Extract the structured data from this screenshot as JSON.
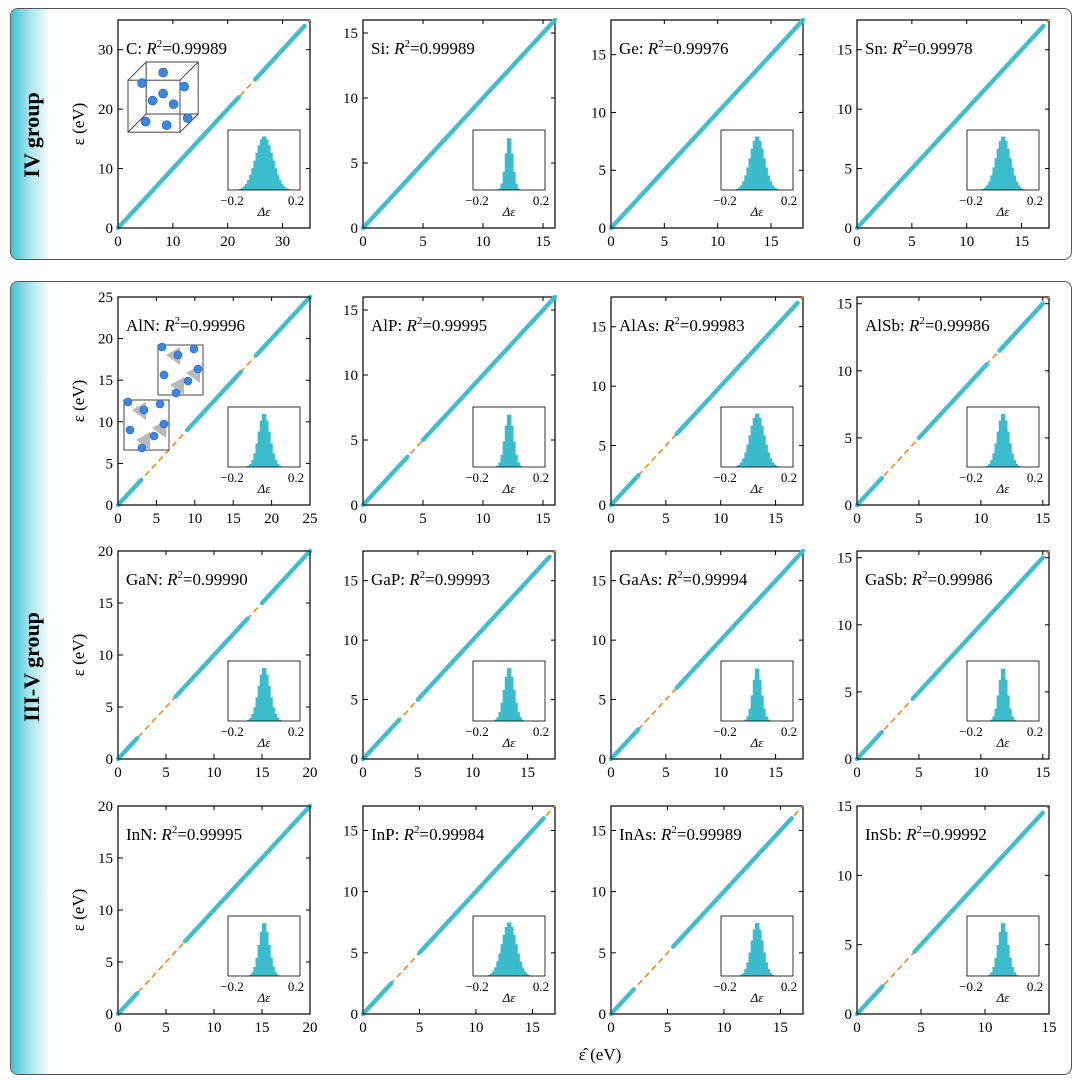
{
  "groups": {
    "iv": "IV group",
    "iii_v": "III-V group"
  },
  "axis_labels": {
    "y": "ε (eV)",
    "x": "ε̂ (eV)"
  },
  "colors": {
    "points": "#3bbccc",
    "fit_line": "#f08a24",
    "histogram": "#3bbccc"
  },
  "chart_data": [
    {
      "type": "scatter",
      "material": "C",
      "r2_label": "R",
      "r2_value": "=0.99989",
      "sep": ":",
      "xlim": [
        0,
        35
      ],
      "ylim": [
        0,
        35
      ],
      "xticks": [
        0,
        10,
        20,
        30
      ],
      "yticks": [
        0,
        10,
        20,
        30
      ],
      "segments": [
        [
          0,
          22
        ],
        [
          25,
          34
        ]
      ],
      "inset": {
        "type": "histogram",
        "xticks": [
          "-0.2",
          "0.2"
        ],
        "xlabel": "Δε",
        "spread": 0.06
      }
    },
    {
      "type": "scatter",
      "material": "Si",
      "r2_label": "R",
      "r2_value": "=0.99989",
      "sep": ":",
      "xlim": [
        0,
        16
      ],
      "ylim": [
        0,
        16
      ],
      "xticks": [
        0,
        5,
        10,
        15
      ],
      "yticks": [
        0,
        5,
        10,
        15
      ],
      "segments": [
        [
          0,
          16
        ]
      ],
      "inset": {
        "type": "histogram",
        "xticks": [
          "-0.2",
          "0.2"
        ],
        "xlabel": "Δε",
        "spread": 0.025
      }
    },
    {
      "type": "scatter",
      "material": "Ge",
      "r2_label": "R",
      "r2_value": "=0.99976",
      "sep": ":",
      "xlim": [
        0,
        18
      ],
      "ylim": [
        0,
        18
      ],
      "xticks": [
        0,
        5,
        10,
        15
      ],
      "yticks": [
        0,
        5,
        10,
        15
      ],
      "segments": [
        [
          0,
          18
        ]
      ],
      "inset": {
        "type": "histogram",
        "xticks": [
          "-0.2",
          "0.2"
        ],
        "xlabel": "Δε",
        "spread": 0.05
      }
    },
    {
      "type": "scatter",
      "material": "Sn",
      "r2_label": "R",
      "r2_value": "=0.99978",
      "sep": ":",
      "xlim": [
        0,
        17.5
      ],
      "ylim": [
        0,
        17.5
      ],
      "xticks": [
        0,
        5,
        10,
        15
      ],
      "yticks": [
        0,
        5,
        10,
        15
      ],
      "segments": [
        [
          0,
          17
        ]
      ],
      "inset": {
        "type": "histogram",
        "xticks": [
          "-0.2",
          "0.2"
        ],
        "xlabel": "Δε",
        "spread": 0.05
      }
    },
    {
      "type": "scatter",
      "material": "AlN",
      "r2_label": "R",
      "r2_value": "=0.99996",
      "sep": ":",
      "xlim": [
        0,
        25
      ],
      "ylim": [
        0,
        25
      ],
      "xticks": [
        0,
        5,
        10,
        15,
        20,
        25
      ],
      "yticks": [
        0,
        5,
        10,
        15,
        20,
        25
      ],
      "segments": [
        [
          0,
          3
        ],
        [
          9,
          16
        ],
        [
          18,
          25
        ]
      ],
      "inset": {
        "type": "histogram",
        "xticks": [
          "-0.2",
          "0.2"
        ],
        "xlabel": "Δε",
        "spread": 0.04
      }
    },
    {
      "type": "scatter",
      "material": "AlP",
      "r2_label": "R",
      "r2_value": "=0.99995",
      "sep": ":",
      "xlim": [
        0,
        16
      ],
      "ylim": [
        0,
        16
      ],
      "xticks": [
        0,
        5,
        10,
        15
      ],
      "yticks": [
        0,
        5,
        10,
        15
      ],
      "segments": [
        [
          0,
          3.7
        ],
        [
          5,
          16
        ]
      ],
      "inset": {
        "type": "histogram",
        "xticks": [
          "-0.2",
          "0.2"
        ],
        "xlabel": "Δε",
        "spread": 0.03
      }
    },
    {
      "type": "scatter",
      "material": "AlAs",
      "r2_label": "R",
      "r2_value": "=0.99983",
      "sep": ":",
      "xlim": [
        0,
        17.5
      ],
      "ylim": [
        0,
        17.5
      ],
      "xticks": [
        0,
        5,
        10,
        15
      ],
      "yticks": [
        0,
        5,
        10,
        15
      ],
      "segments": [
        [
          0,
          2.5
        ],
        [
          6,
          17
        ]
      ],
      "inset": {
        "type": "histogram",
        "xticks": [
          "-0.2",
          "0.2"
        ],
        "xlabel": "Δε",
        "spread": 0.05
      }
    },
    {
      "type": "scatter",
      "material": "AlSb",
      "r2_label": "R",
      "r2_value": "=0.99986",
      "sep": ":",
      "xlim": [
        0,
        15.5
      ],
      "ylim": [
        0,
        15.5
      ],
      "xticks": [
        0,
        5,
        10,
        15
      ],
      "yticks": [
        0,
        5,
        10,
        15
      ],
      "segments": [
        [
          0,
          2
        ],
        [
          5,
          10.5
        ],
        [
          11.5,
          15
        ]
      ],
      "inset": {
        "type": "histogram",
        "xticks": [
          "-0.2",
          "0.2"
        ],
        "xlabel": "Δε",
        "spread": 0.04
      }
    },
    {
      "type": "scatter",
      "material": "GaN",
      "r2_label": "R",
      "r2_value": "=0.99990",
      "sep": ":",
      "xlim": [
        0,
        20
      ],
      "ylim": [
        0,
        20
      ],
      "xticks": [
        0,
        5,
        10,
        15,
        20
      ],
      "yticks": [
        0,
        5,
        10,
        15,
        20
      ],
      "segments": [
        [
          0,
          2
        ],
        [
          6,
          13.5
        ],
        [
          15,
          20
        ]
      ],
      "inset": {
        "type": "histogram",
        "xticks": [
          "-0.2",
          "0.2"
        ],
        "xlabel": "Δε",
        "spread": 0.04
      }
    },
    {
      "type": "scatter",
      "material": "GaP",
      "r2_label": "R",
      "r2_value": "=0.99993",
      "sep": ":",
      "xlim": [
        0,
        17.5
      ],
      "ylim": [
        0,
        17.5
      ],
      "xticks": [
        0,
        5,
        10,
        15
      ],
      "yticks": [
        0,
        5,
        10,
        15
      ],
      "segments": [
        [
          0,
          3.3
        ],
        [
          5,
          17
        ]
      ],
      "inset": {
        "type": "histogram",
        "xticks": [
          "-0.2",
          "0.2"
        ],
        "xlabel": "Δε",
        "spread": 0.035
      }
    },
    {
      "type": "scatter",
      "material": "GaAs",
      "r2_label": "R",
      "r2_value": "=0.99994",
      "sep": ":",
      "xlim": [
        0,
        17.5
      ],
      "ylim": [
        0,
        17.5
      ],
      "xticks": [
        0,
        5,
        10,
        15
      ],
      "yticks": [
        0,
        5,
        10,
        15
      ],
      "segments": [
        [
          0,
          2.5
        ],
        [
          6,
          17.5
        ]
      ],
      "inset": {
        "type": "histogram",
        "xticks": [
          "-0.2",
          "0.2"
        ],
        "xlabel": "Δε",
        "spread": 0.03
      }
    },
    {
      "type": "scatter",
      "material": "GaSb",
      "r2_label": "R",
      "r2_value": "=0.99986",
      "sep": ":",
      "xlim": [
        0,
        15.5
      ],
      "ylim": [
        0,
        15.5
      ],
      "xticks": [
        0,
        5,
        10,
        15
      ],
      "yticks": [
        0,
        5,
        10,
        15
      ],
      "segments": [
        [
          0,
          2
        ],
        [
          4.5,
          15
        ]
      ],
      "inset": {
        "type": "histogram",
        "xticks": [
          "-0.2",
          "0.2"
        ],
        "xlabel": "Δε",
        "spread": 0.03
      }
    },
    {
      "type": "scatter",
      "material": "InN",
      "r2_label": "R",
      "r2_value": "=0.99995",
      "sep": ":",
      "xlim": [
        0,
        20
      ],
      "ylim": [
        0,
        20
      ],
      "xticks": [
        0,
        5,
        10,
        15,
        20
      ],
      "yticks": [
        0,
        5,
        10,
        15,
        20
      ],
      "segments": [
        [
          0,
          2
        ],
        [
          7,
          20
        ]
      ],
      "inset": {
        "type": "histogram",
        "xticks": [
          "-0.2",
          "0.2"
        ],
        "xlabel": "Δε",
        "spread": 0.035
      }
    },
    {
      "type": "scatter",
      "material": "InP",
      "r2_label": "R",
      "r2_value": "=0.99984",
      "sep": ":",
      "xlim": [
        0,
        17
      ],
      "ylim": [
        0,
        17
      ],
      "xticks": [
        0,
        5,
        10,
        15
      ],
      "yticks": [
        0,
        5,
        10,
        15
      ],
      "segments": [
        [
          0,
          2.5
        ],
        [
          5,
          16
        ]
      ],
      "inset": {
        "type": "histogram",
        "xticks": [
          "-0.2",
          "0.2"
        ],
        "xlabel": "Δε",
        "spread": 0.05
      }
    },
    {
      "type": "scatter",
      "material": "InAs",
      "r2_label": "R",
      "r2_value": "=0.99989",
      "sep": ":",
      "xlim": [
        0,
        17
      ],
      "ylim": [
        0,
        17
      ],
      "xticks": [
        0,
        5,
        10,
        15
      ],
      "yticks": [
        0,
        5,
        10,
        15
      ],
      "segments": [
        [
          0,
          2
        ],
        [
          5.5,
          16
        ]
      ],
      "inset": {
        "type": "histogram",
        "xticks": [
          "-0.2",
          "0.2"
        ],
        "xlabel": "Δε",
        "spread": 0.04
      }
    },
    {
      "type": "scatter",
      "material": "InSb",
      "r2_label": "R",
      "r2_value": "=0.99992",
      "sep": ":",
      "xlim": [
        0,
        15
      ],
      "ylim": [
        0,
        15
      ],
      "xticks": [
        0,
        5,
        10,
        15
      ],
      "yticks": [
        0,
        5,
        10,
        15
      ],
      "segments": [
        [
          0,
          2
        ],
        [
          4.5,
          14.5
        ]
      ],
      "inset": {
        "type": "histogram",
        "xticks": [
          "-0.2",
          "0.2"
        ],
        "xlabel": "Δε",
        "spread": 0.035
      }
    }
  ]
}
